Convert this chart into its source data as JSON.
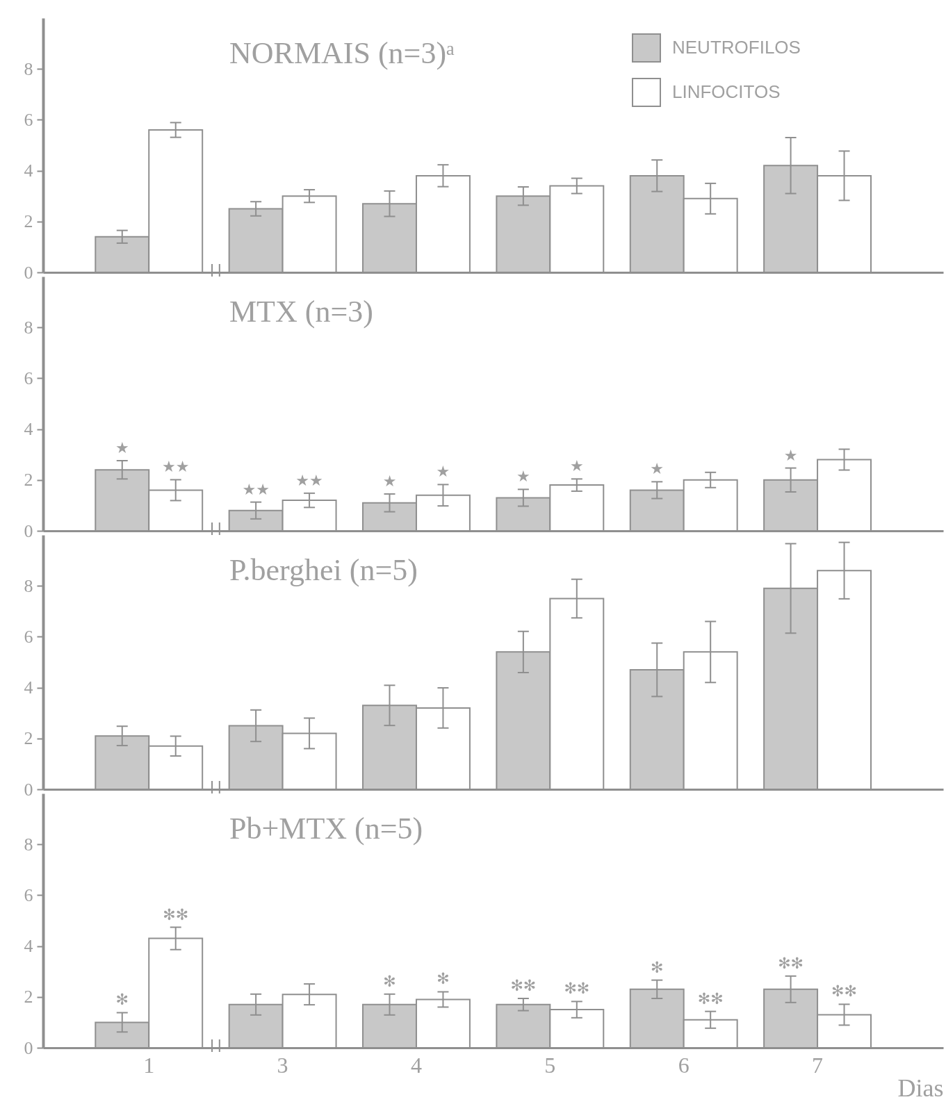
{
  "chart_data": [
    {
      "type": "bar",
      "title": "NORMAIS (n=3)ᵃ",
      "categories": [
        "1",
        "3",
        "4",
        "5",
        "6",
        "7"
      ],
      "series": [
        {
          "name": "NEUTROFILOS",
          "color": "#c8c8c8",
          "values": [
            1.4,
            2.5,
            2.7,
            3.0,
            3.8,
            4.2
          ],
          "errors": [
            0.25,
            0.28,
            0.5,
            0.36,
            0.62,
            1.1
          ]
        },
        {
          "name": "LINFOCITOS",
          "color": "#ffffff",
          "values": [
            5.6,
            3.0,
            3.8,
            3.4,
            2.9,
            3.8
          ],
          "errors": [
            0.29,
            0.25,
            0.43,
            0.3,
            0.6,
            0.97
          ]
        }
      ],
      "ylim": [
        0,
        10
      ],
      "yticks": [
        0,
        2,
        4,
        6,
        8
      ],
      "legend": "top right",
      "tick_labels": "y"
    },
    {
      "type": "bar",
      "title": "MTX (n=3)",
      "categories": [
        "1",
        "3",
        "4",
        "5",
        "6",
        "7"
      ],
      "series": [
        {
          "color": "#c8c8c8",
          "values": [
            2.4,
            0.8,
            1.1,
            1.3,
            1.6,
            2.0
          ],
          "errors": [
            0.36,
            0.33,
            0.35,
            0.33,
            0.33,
            0.47
          ],
          "value_labels": [
            "★",
            "★★",
            "★",
            "★",
            "★",
            "★"
          ]
        },
        {
          "color": "#ffffff",
          "values": [
            1.6,
            1.2,
            1.4,
            1.8,
            2.0,
            2.8
          ],
          "errors": [
            0.41,
            0.28,
            0.42,
            0.24,
            0.3,
            0.41
          ],
          "value_labels": [
            "★★",
            "★★",
            "★",
            "★",
            null,
            null
          ]
        }
      ],
      "ylim": [
        0,
        10
      ],
      "yticks": [
        0,
        2,
        4,
        6,
        8
      ],
      "tick_labels": "y"
    },
    {
      "type": "bar",
      "title": "P.berghei (n=5)",
      "categories": [
        "1",
        "3",
        "4",
        "5",
        "6",
        "7"
      ],
      "series": [
        {
          "color": "#c8c8c8",
          "values": [
            2.1,
            2.5,
            3.3,
            5.4,
            4.7,
            7.9
          ],
          "errors": [
            0.38,
            0.62,
            0.79,
            0.81,
            1.05,
            1.76
          ]
        },
        {
          "color": "#ffffff",
          "values": [
            1.7,
            2.2,
            3.2,
            7.5,
            5.4,
            8.6
          ],
          "errors": [
            0.39,
            0.6,
            0.79,
            0.76,
            1.2,
            1.11
          ]
        }
      ],
      "ylim": [
        0,
        10
      ],
      "yticks": [
        0,
        2,
        4,
        6,
        8
      ],
      "tick_labels": "y"
    },
    {
      "type": "bar",
      "title": "Pb+MTX (n=5)",
      "xlabel": "Dias",
      "categories": [
        "1",
        "3",
        "4",
        "5",
        "6",
        "7"
      ],
      "series": [
        {
          "color": "#c8c8c8",
          "values": [
            1.0,
            1.7,
            1.7,
            1.7,
            2.3,
            2.3
          ],
          "errors": [
            0.38,
            0.41,
            0.41,
            0.24,
            0.36,
            0.52
          ],
          "value_labels": [
            "✻",
            null,
            "✻",
            "✻✻",
            "✻",
            "✻✻"
          ]
        },
        {
          "color": "#ffffff",
          "values": [
            4.3,
            2.1,
            1.9,
            1.5,
            1.1,
            1.3
          ],
          "errors": [
            0.44,
            0.41,
            0.3,
            0.32,
            0.33,
            0.41
          ],
          "value_labels": [
            "✻✻",
            null,
            "✻",
            "✻✻",
            "✻✻",
            "✻✻"
          ]
        }
      ],
      "ylim": [
        0,
        10
      ],
      "yticks": [
        0,
        2,
        4,
        6,
        8
      ]
    }
  ]
}
